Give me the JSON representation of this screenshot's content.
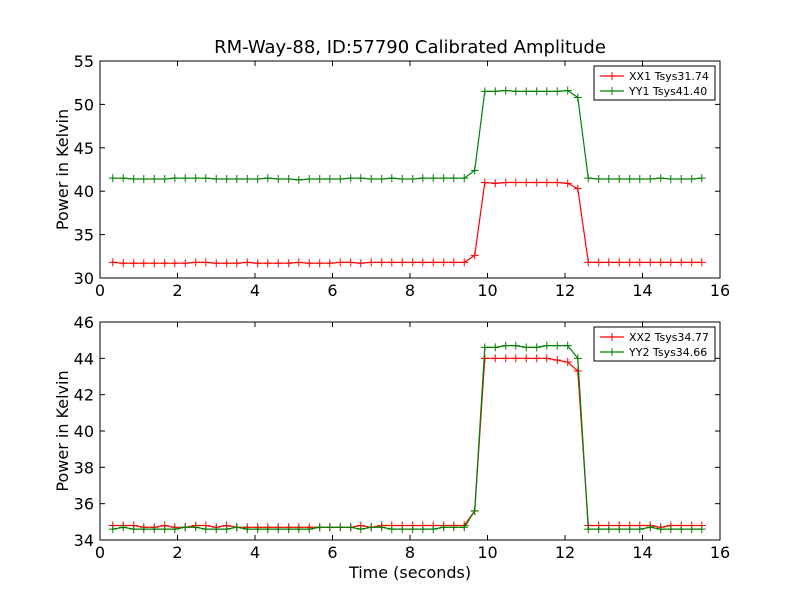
{
  "figure_title": "RM-Way-88, ID:57790 Calibrated Amplitude",
  "colors": {
    "xx": "#ff0000",
    "yy": "#008000"
  },
  "chart_data": [
    {
      "type": "line",
      "title": "RM-Way-88, ID:57790 Calibrated Amplitude",
      "xlabel": "",
      "ylabel": "Power in Kelvin",
      "xlim": [
        0,
        16
      ],
      "ylim": [
        30,
        55
      ],
      "xticks": [
        0,
        2,
        4,
        6,
        8,
        10,
        12,
        14,
        16
      ],
      "yticks": [
        30,
        35,
        40,
        45,
        50,
        55
      ],
      "grid": false,
      "legend_position": "top-right",
      "marker": "+",
      "x": [
        0.33,
        0.6,
        0.87,
        1.13,
        1.4,
        1.67,
        1.93,
        2.2,
        2.47,
        2.73,
        3.0,
        3.27,
        3.53,
        3.8,
        4.07,
        4.33,
        4.6,
        4.87,
        5.13,
        5.4,
        5.67,
        5.93,
        6.2,
        6.47,
        6.73,
        7.0,
        7.27,
        7.53,
        7.8,
        8.07,
        8.33,
        8.6,
        8.87,
        9.13,
        9.4,
        9.67,
        9.93,
        10.2,
        10.47,
        10.73,
        11.0,
        11.27,
        11.53,
        11.8,
        12.07,
        12.33,
        12.6,
        12.87,
        13.13,
        13.4,
        13.67,
        13.93,
        14.2,
        14.47,
        14.73,
        15.0,
        15.27,
        15.53
      ],
      "series": [
        {
          "name": "XX1 Tsys31.74",
          "color": "#ff0000",
          "values": [
            31.8,
            31.7,
            31.7,
            31.7,
            31.7,
            31.7,
            31.7,
            31.7,
            31.8,
            31.8,
            31.7,
            31.7,
            31.7,
            31.8,
            31.7,
            31.7,
            31.7,
            31.7,
            31.8,
            31.7,
            31.7,
            31.7,
            31.8,
            31.8,
            31.7,
            31.8,
            31.8,
            31.8,
            31.8,
            31.8,
            31.8,
            31.8,
            31.8,
            31.8,
            31.8,
            32.6,
            41.0,
            40.9,
            41.0,
            41.0,
            41.0,
            41.0,
            41.0,
            41.0,
            40.9,
            40.3,
            31.8,
            31.8,
            31.8,
            31.8,
            31.8,
            31.8,
            31.8,
            31.8,
            31.8,
            31.8,
            31.8,
            31.8
          ]
        },
        {
          "name": "YY1 Tsys41.40",
          "color": "#008000",
          "values": [
            41.5,
            41.5,
            41.4,
            41.4,
            41.4,
            41.4,
            41.5,
            41.5,
            41.5,
            41.5,
            41.4,
            41.4,
            41.4,
            41.4,
            41.4,
            41.5,
            41.4,
            41.4,
            41.3,
            41.4,
            41.4,
            41.4,
            41.4,
            41.5,
            41.5,
            41.4,
            41.4,
            41.5,
            41.4,
            41.4,
            41.5,
            41.5,
            41.5,
            41.5,
            41.5,
            42.4,
            51.5,
            51.5,
            51.6,
            51.5,
            51.5,
            51.5,
            51.5,
            51.5,
            51.6,
            50.8,
            41.5,
            41.4,
            41.4,
            41.4,
            41.4,
            41.4,
            41.4,
            41.5,
            41.4,
            41.4,
            41.4,
            41.5
          ]
        }
      ]
    },
    {
      "type": "line",
      "title": "",
      "xlabel": "Time (seconds)",
      "ylabel": "Power in Kelvin",
      "xlim": [
        0,
        16
      ],
      "ylim": [
        34,
        46
      ],
      "xticks": [
        0,
        2,
        4,
        6,
        8,
        10,
        12,
        14,
        16
      ],
      "yticks": [
        34,
        36,
        38,
        40,
        42,
        44,
        46
      ],
      "grid": false,
      "legend_position": "top-right",
      "marker": "+",
      "x": [
        0.33,
        0.6,
        0.87,
        1.13,
        1.4,
        1.67,
        1.93,
        2.2,
        2.47,
        2.73,
        3.0,
        3.27,
        3.53,
        3.8,
        4.07,
        4.33,
        4.6,
        4.87,
        5.13,
        5.4,
        5.67,
        5.93,
        6.2,
        6.47,
        6.73,
        7.0,
        7.27,
        7.53,
        7.8,
        8.07,
        8.33,
        8.6,
        8.87,
        9.13,
        9.4,
        9.67,
        9.93,
        10.2,
        10.47,
        10.73,
        11.0,
        11.27,
        11.53,
        11.8,
        12.07,
        12.33,
        12.6,
        12.87,
        13.13,
        13.4,
        13.67,
        13.93,
        14.2,
        14.47,
        14.73,
        15.0,
        15.27,
        15.53
      ],
      "series": [
        {
          "name": "XX2 Tsys34.77",
          "color": "#ff0000",
          "values": [
            34.8,
            34.8,
            34.8,
            34.7,
            34.7,
            34.8,
            34.7,
            34.7,
            34.8,
            34.8,
            34.7,
            34.8,
            34.7,
            34.7,
            34.7,
            34.7,
            34.7,
            34.7,
            34.7,
            34.7,
            34.7,
            34.7,
            34.7,
            34.7,
            34.8,
            34.7,
            34.8,
            34.8,
            34.8,
            34.8,
            34.8,
            34.8,
            34.8,
            34.8,
            34.8,
            35.6,
            44.0,
            44.0,
            44.0,
            44.0,
            44.0,
            44.0,
            44.0,
            43.9,
            43.8,
            43.3,
            34.8,
            34.8,
            34.8,
            34.8,
            34.8,
            34.8,
            34.8,
            34.7,
            34.8,
            34.8,
            34.8,
            34.8
          ]
        },
        {
          "name": "YY2 Tsys34.66",
          "color": "#008000",
          "values": [
            34.6,
            34.7,
            34.6,
            34.6,
            34.6,
            34.6,
            34.6,
            34.7,
            34.7,
            34.6,
            34.6,
            34.6,
            34.7,
            34.6,
            34.6,
            34.6,
            34.6,
            34.6,
            34.6,
            34.6,
            34.7,
            34.7,
            34.7,
            34.7,
            34.6,
            34.7,
            34.7,
            34.6,
            34.6,
            34.6,
            34.6,
            34.6,
            34.7,
            34.7,
            34.7,
            35.6,
            44.6,
            44.6,
            44.7,
            44.7,
            44.6,
            44.6,
            44.7,
            44.7,
            44.7,
            44.0,
            34.6,
            34.6,
            34.6,
            34.6,
            34.6,
            34.6,
            34.7,
            34.6,
            34.6,
            34.6,
            34.6,
            34.6
          ]
        }
      ]
    }
  ]
}
